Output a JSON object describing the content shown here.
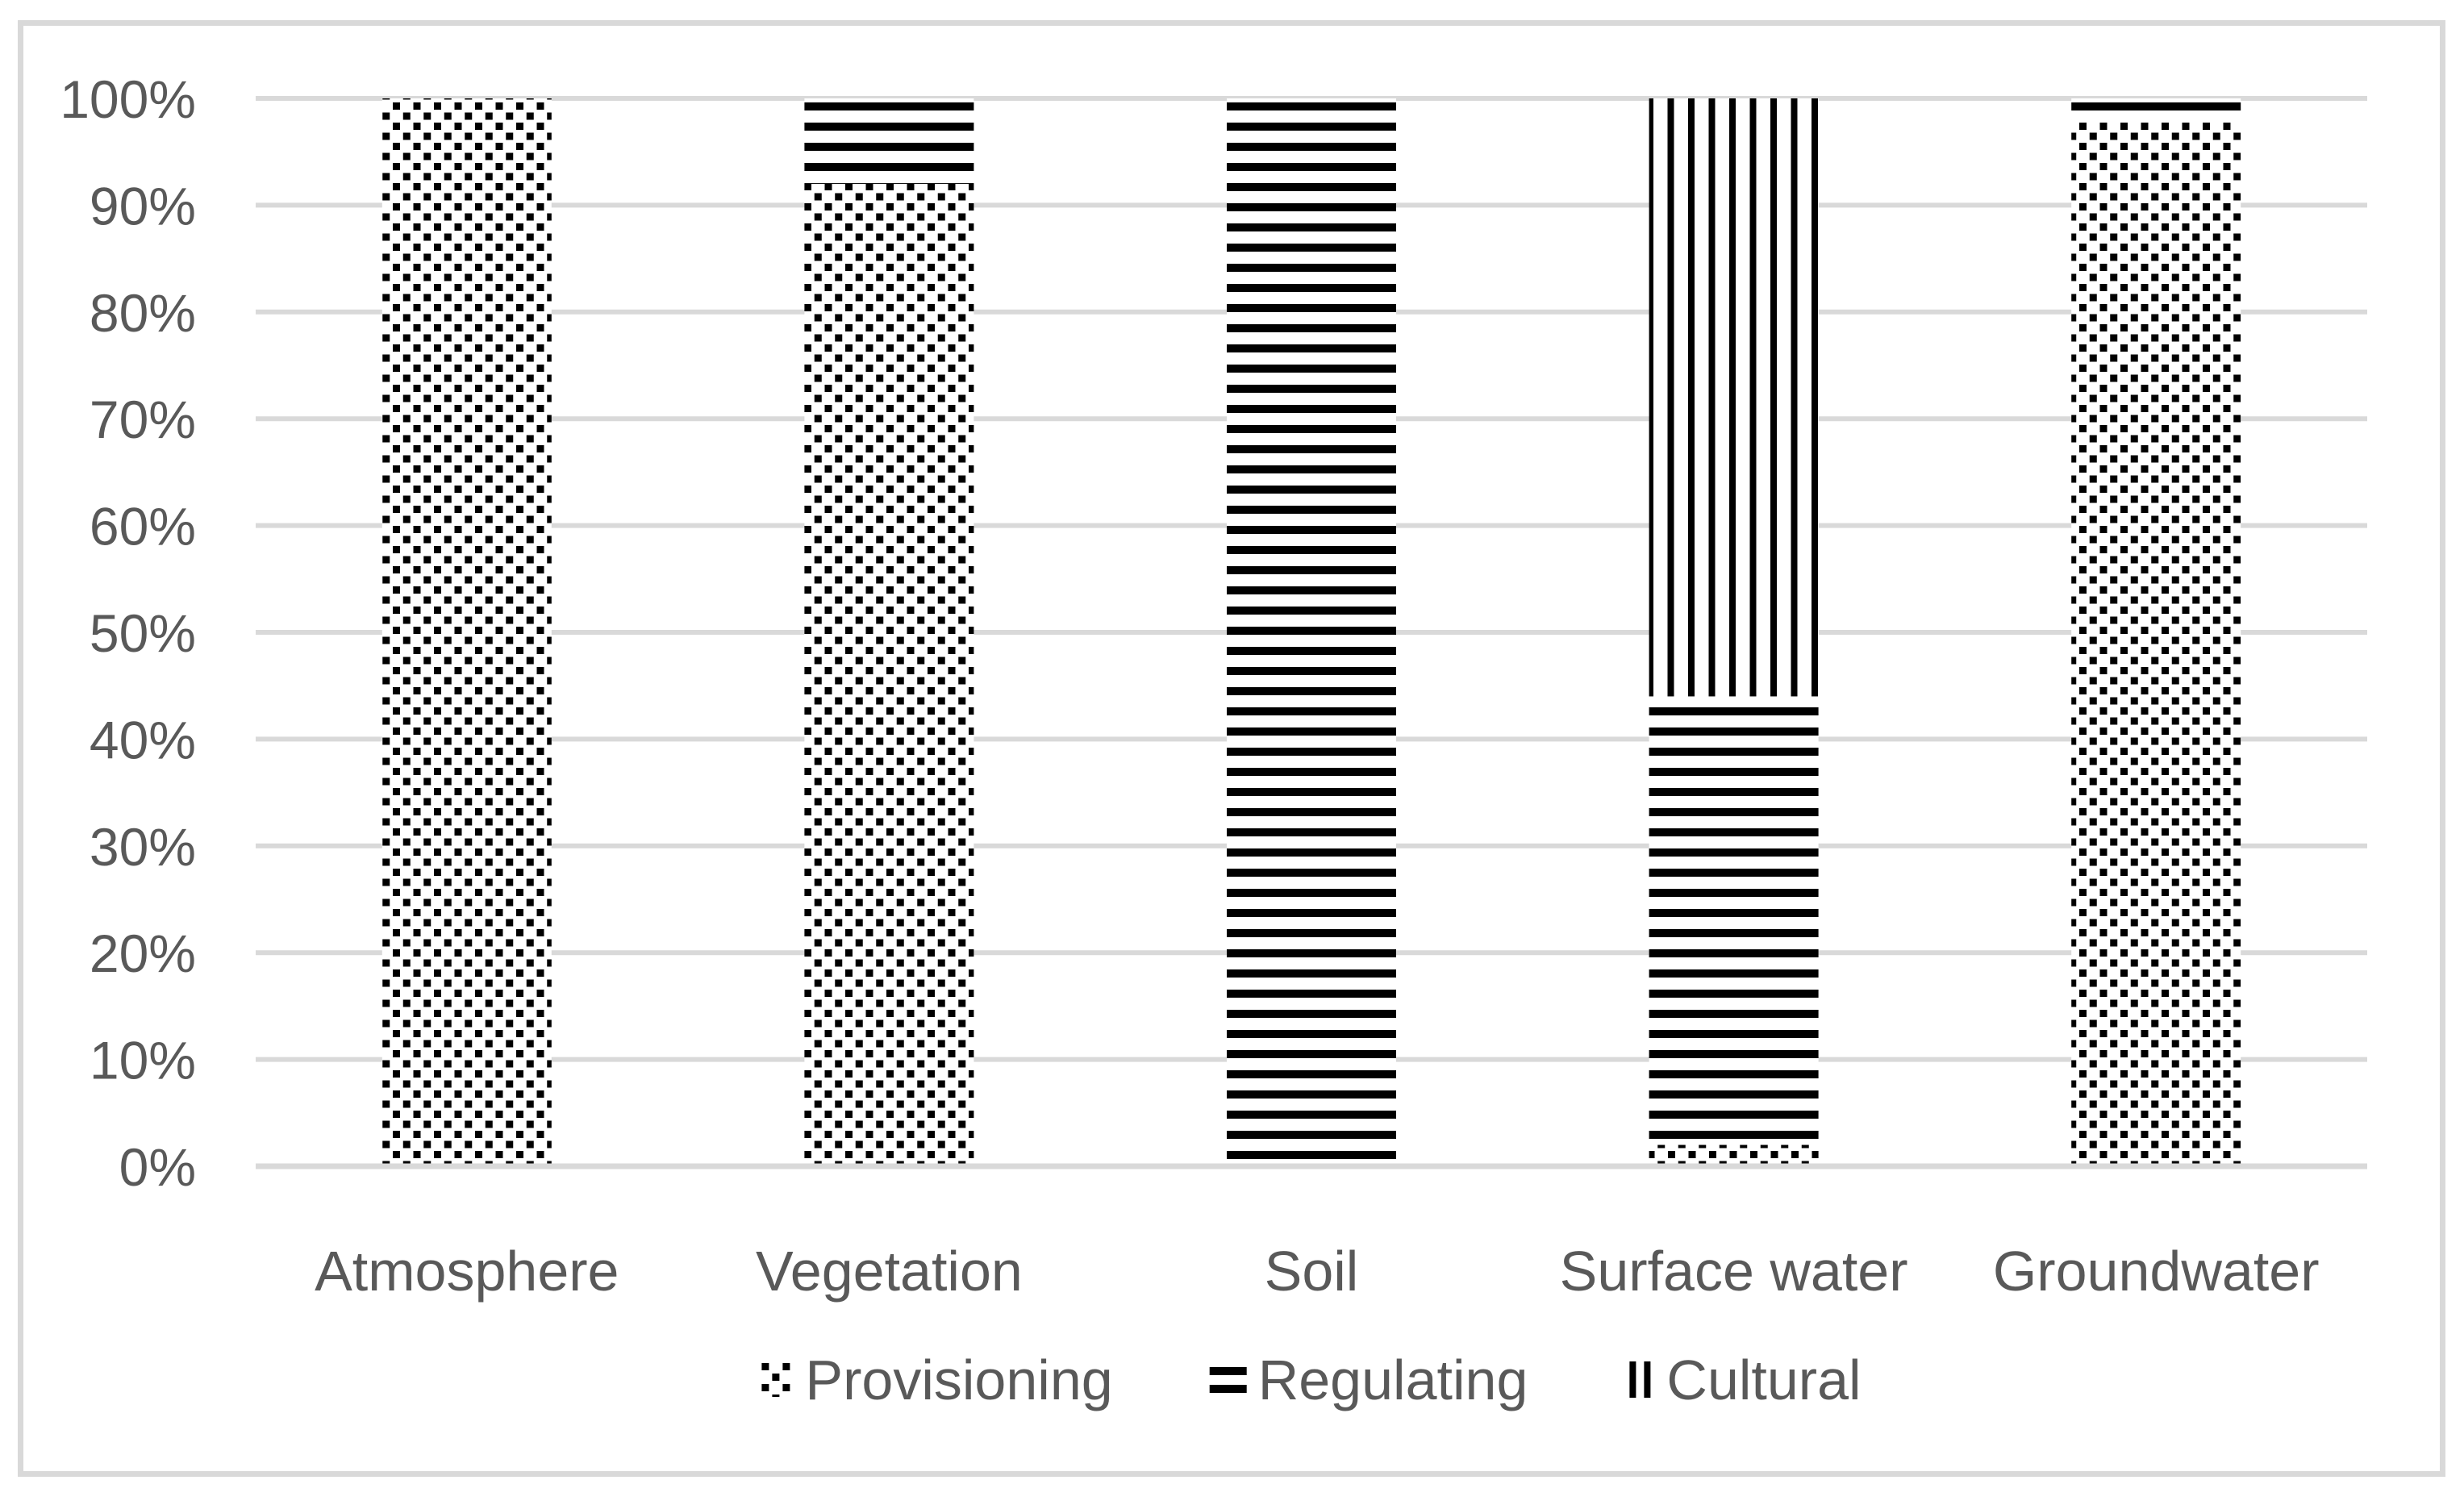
{
  "chart_data": {
    "type": "bar",
    "variant": "100-percent-stacked-column",
    "orientation": "vertical",
    "categories": [
      "Atmosphere",
      "Vegetation",
      "Soil",
      "Surface water",
      "Groundwater"
    ],
    "series": [
      {
        "name": "Provisioning",
        "pattern": "dots",
        "values": [
          100,
          92,
          0,
          2,
          98
        ]
      },
      {
        "name": "Regulating",
        "pattern": "horizontal-stripes",
        "values": [
          0,
          8,
          100,
          42,
          2
        ]
      },
      {
        "name": "Cultural",
        "pattern": "vertical-stripes",
        "values": [
          0,
          0,
          0,
          56,
          0
        ]
      }
    ],
    "y_axis": {
      "min": 0,
      "max": 100,
      "tick_step": 10,
      "unit": "%",
      "tick_labels": [
        "0%",
        "10%",
        "20%",
        "30%",
        "40%",
        "50%",
        "60%",
        "70%",
        "80%",
        "90%",
        "100%"
      ]
    },
    "grid": true,
    "legend": {
      "position": "bottom"
    },
    "colors": {
      "pattern_foreground": "#000000",
      "pattern_background": "#ffffff",
      "gridline": "#d9d9d9",
      "axis_line": "#d9d9d9",
      "frame_border": "#d9d9d9",
      "axis_text": "#595959"
    }
  }
}
